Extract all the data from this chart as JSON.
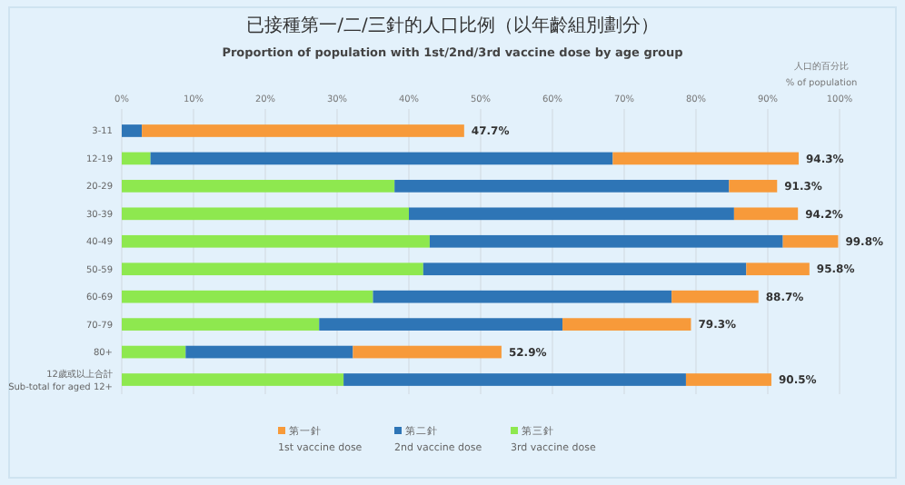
{
  "chart_data": {
    "type": "bar",
    "orientation": "horizontal",
    "stacked": true,
    "title": "已接種第一/二/三針的人口比例（以年齡組別劃分）",
    "subtitle": "Proportion of population with 1st/2nd/3rd vaccine dose by age group",
    "xlabel": "人口的百分比\n% of population",
    "categories": [
      "3-11",
      "12-19",
      "20-29",
      "30-39",
      "40-49",
      "50-59",
      "60-69",
      "70-79",
      "80+",
      "12歲或以上合計\nSub-total for aged 12+"
    ],
    "series": [
      {
        "name": "第三針\n3rd vaccine dose",
        "color": "#8ee84f",
        "values": [
          0,
          4.0,
          38,
          40,
          42.9,
          42,
          35,
          27.5,
          8.9,
          30.9
        ]
      },
      {
        "name": "第二針\n2nd vaccine dose",
        "color": "#2e75b6",
        "values": [
          2.8,
          64.4,
          46.6,
          45.3,
          49.2,
          45,
          41.6,
          33.9,
          23.3,
          47.7
        ]
      },
      {
        "name": "第一針\n1st vaccine dose",
        "color": "#f79a3a",
        "values": [
          44.9,
          25.9,
          6.7,
          8.9,
          7.7,
          8.8,
          12.1,
          17.9,
          20.7,
          11.9
        ]
      }
    ],
    "totals": [
      "47.7%",
      "94.3%",
      "91.3%",
      "94.2%",
      "99.8%",
      "95.8%",
      "88.7%",
      "79.3%",
      "52.9%",
      "90.5%"
    ],
    "xlim": [
      0,
      100
    ],
    "xticks": [
      {
        "value": 0,
        "label": "0%"
      },
      {
        "value": 10,
        "label": "10%"
      },
      {
        "value": 20,
        "label": "20%"
      },
      {
        "value": 30,
        "label": "30%"
      },
      {
        "value": 40,
        "label": "40%"
      },
      {
        "value": 50,
        "label": "50%"
      },
      {
        "value": 60,
        "label": "60%"
      },
      {
        "value": 70,
        "label": "70%"
      },
      {
        "value": 80,
        "label": "80%"
      },
      {
        "value": 90,
        "label": "90%"
      },
      {
        "value": 100,
        "label": "100%"
      }
    ],
    "grid": "x",
    "legend": "bottom"
  }
}
